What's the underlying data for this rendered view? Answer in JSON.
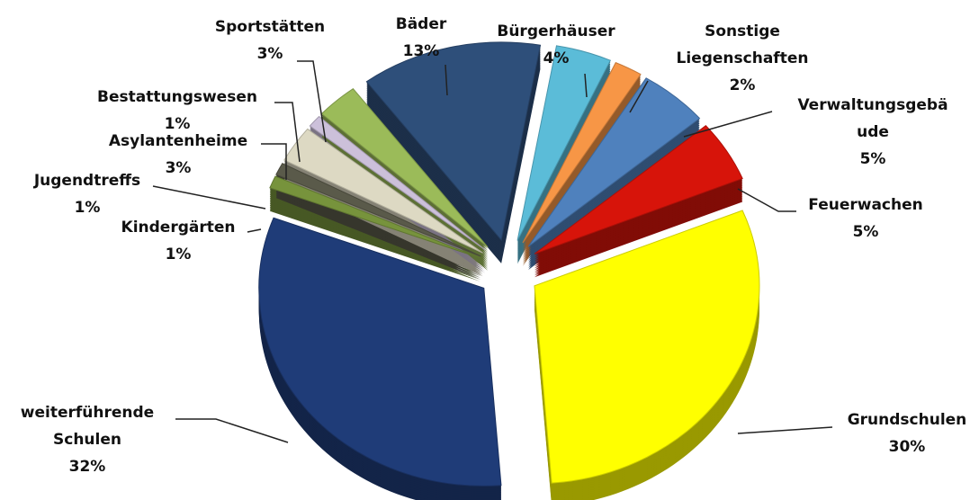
{
  "chart_data": {
    "type": "pie",
    "categories": [
      "Bürgerhäuser",
      "Sonstige Liegenschaften",
      "Verwaltungsgebäude",
      "Feuerwachen",
      "Grundschulen",
      "weiterführende Schulen",
      "Kindergärten",
      "Jugendtreffs",
      "Asylantenheime",
      "Bestattungswesen",
      "Sportstätten",
      "Bäder"
    ],
    "values": [
      4,
      2,
      5,
      5,
      30,
      32,
      1,
      1,
      3,
      1,
      3,
      13
    ],
    "value_labels": [
      "4%",
      "2%",
      "5%",
      "5%",
      "30%",
      "32%",
      "1%",
      "1%",
      "3%",
      "1%",
      "3%",
      "13%"
    ],
    "colors": [
      "#5bbcd8",
      "#f79646",
      "#4f81bd",
      "#d7140a",
      "#ffff00",
      "#1f3c78",
      "#77933c",
      "#5a5a4a",
      "#ddd9c3",
      "#ccc0da",
      "#9bbb59",
      "#2e4f7a"
    ]
  }
}
